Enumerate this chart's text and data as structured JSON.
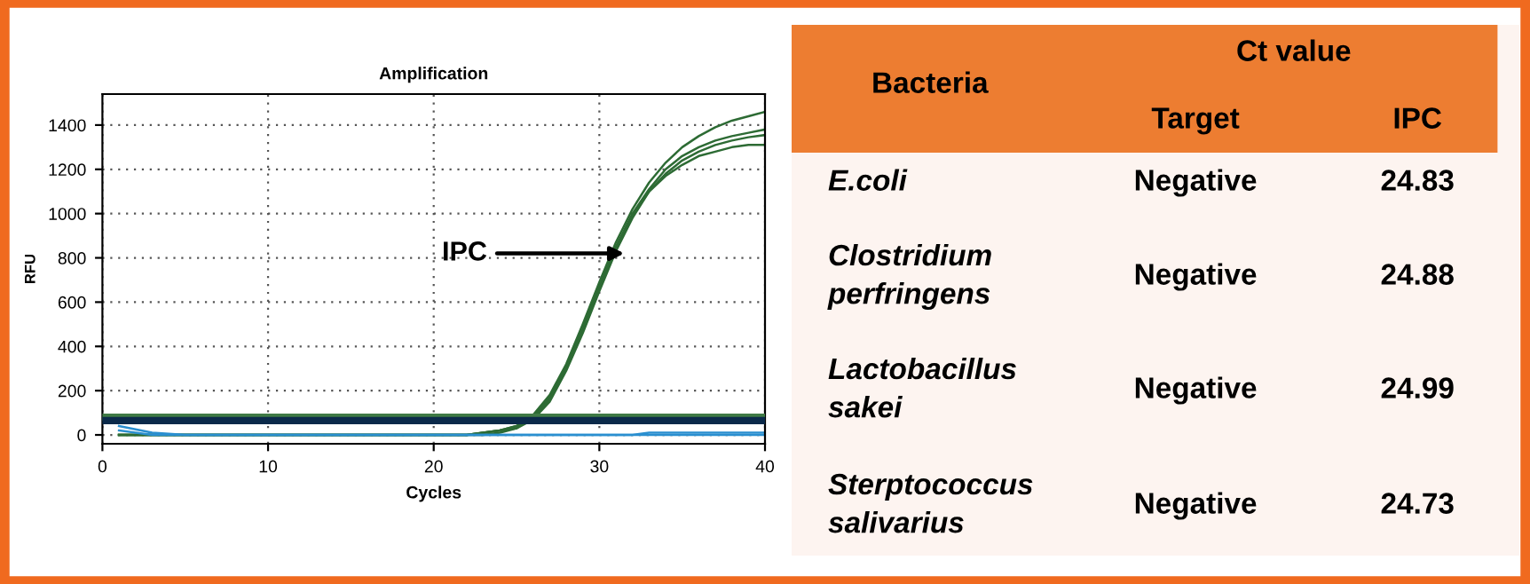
{
  "chart_data": [
    {
      "type": "line",
      "title": "Amplification",
      "xlabel": "Cycles",
      "ylabel": "RFU",
      "x": [
        1,
        3,
        5,
        10,
        15,
        20,
        22,
        23,
        24,
        25,
        26,
        27,
        28,
        29,
        30,
        31,
        32,
        33,
        34,
        35,
        36,
        37,
        38,
        39,
        40
      ],
      "series": [
        {
          "color": "#2d6b34",
          "values": [
            0,
            0,
            0,
            0,
            0,
            0,
            0,
            10,
            20,
            40,
            90,
            180,
            320,
            500,
            690,
            870,
            1020,
            1140,
            1230,
            1300,
            1350,
            1390,
            1420,
            1440,
            1460
          ]
        },
        {
          "color": "#2d6b34",
          "values": [
            0,
            0,
            0,
            0,
            0,
            0,
            0,
            10,
            20,
            40,
            80,
            170,
            310,
            480,
            670,
            850,
            1000,
            1110,
            1200,
            1260,
            1300,
            1330,
            1350,
            1365,
            1380
          ]
        },
        {
          "color": "#2d6b34",
          "values": [
            0,
            0,
            0,
            0,
            0,
            0,
            0,
            0,
            10,
            30,
            70,
            150,
            290,
            460,
            650,
            830,
            980,
            1100,
            1180,
            1240,
            1280,
            1310,
            1330,
            1345,
            1355
          ]
        },
        {
          "color": "#2d6b34",
          "values": [
            0,
            0,
            0,
            0,
            0,
            0,
            0,
            10,
            20,
            30,
            80,
            160,
            300,
            470,
            660,
            840,
            990,
            1100,
            1170,
            1220,
            1260,
            1280,
            1300,
            1310,
            1310
          ]
        },
        {
          "color": "#2a8fd0",
          "values": [
            40,
            10,
            0,
            0,
            0,
            0,
            0,
            0,
            0,
            0,
            0,
            0,
            0,
            0,
            0,
            0,
            0,
            10,
            10,
            10,
            10,
            10,
            10,
            10,
            10
          ]
        },
        {
          "color": "#2a8fd0",
          "values": [
            20,
            0,
            0,
            0,
            0,
            0,
            0,
            0,
            0,
            0,
            0,
            0,
            0,
            0,
            0,
            0,
            0,
            0,
            0,
            0,
            0,
            0,
            0,
            0,
            0
          ]
        }
      ],
      "xlim": [
        0,
        40
      ],
      "xticks": [
        0,
        10,
        20,
        30,
        40
      ],
      "ylim": [
        -40,
        1540
      ],
      "yticks": [
        0,
        200,
        400,
        600,
        800,
        1000,
        1200,
        1400
      ],
      "grid": true,
      "ref_lines": [
        {
          "axis": "y",
          "value": 80,
          "color": "#3f7a45"
        },
        {
          "axis": "y",
          "value": 65,
          "color": "#0b2a4a"
        }
      ],
      "annotations": [
        {
          "text": "IPC",
          "x": 31.5,
          "y": 820
        }
      ]
    },
    {
      "type": "other",
      "annotations": [
        "Bacteria",
        "Ct value",
        "Target",
        "IPC",
        "E.coli",
        "Negative",
        "24.83",
        "Clostridium\nperfringens",
        "Negative",
        "24.88",
        "Lactobacillus\nsakei",
        "Negative",
        "24.99",
        "Sterptococcus\nsalivarius",
        "Negative",
        "24.73"
      ]
    }
  ]
}
